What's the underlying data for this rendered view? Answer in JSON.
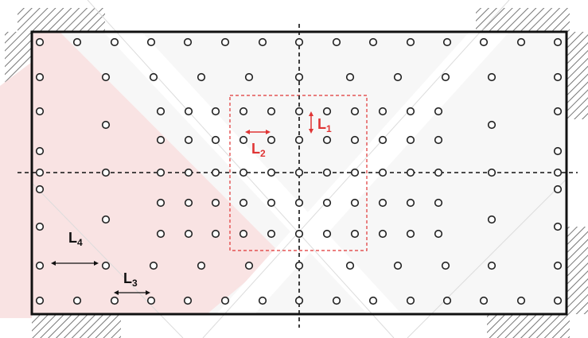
{
  "colors": {
    "plate_fill": "#f7f7f7",
    "highlight": "#f9e3e3",
    "hole_stroke": "#222222",
    "frame": "#111111",
    "accent": "#e03535",
    "dim_black": "#111111"
  },
  "labels": {
    "l1": {
      "letter": "L",
      "sub": "1"
    },
    "l2": {
      "letter": "L",
      "sub": "2"
    },
    "l3": {
      "letter": "L",
      "sub": "3"
    },
    "l4": {
      "letter": "L",
      "sub": "4"
    }
  }
}
